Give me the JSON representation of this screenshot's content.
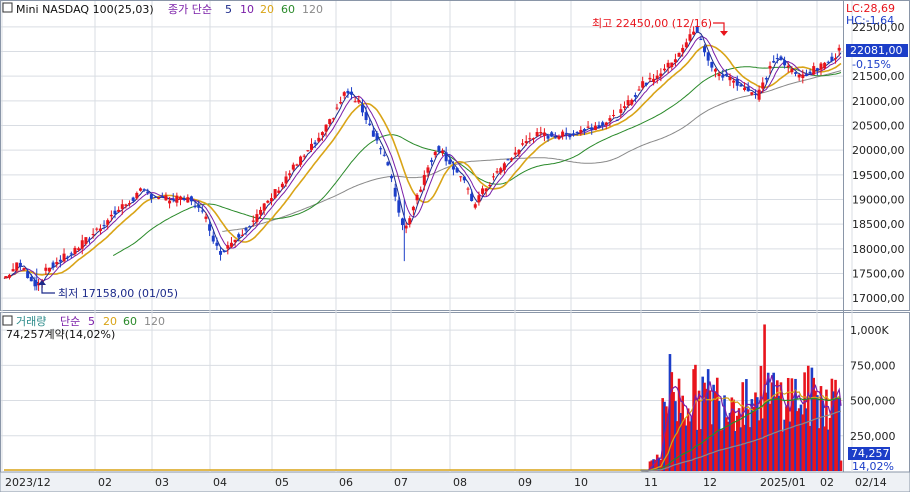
{
  "colors": {
    "up": "#e8141c",
    "down": "#1c3ec8",
    "ma5": "#1c2a8a",
    "ma10": "#7a1ea8",
    "ma20": "#d9a417",
    "ma60": "#2a8a2a",
    "ma120": "#8a8a8a",
    "price_box": "#1c3ec8",
    "grid": "#d9dde3",
    "axis_text": "#222222"
  },
  "price_panel": {
    "title": "Mini NASDAQ 100(25,03)",
    "ma_label": "종가 단순",
    "ma_periods": [
      "5",
      "10",
      "20",
      "60",
      "120"
    ],
    "lc": "LC:28,69",
    "hc": "HC:-1,64",
    "current_price": "22081,00",
    "change_pct": "-0,15%",
    "high_annotation": "최고 22450,00 (12/16)",
    "low_annotation": "최저 17158,00 (01/05)",
    "y_ticks": [
      "22500,00",
      "22000,00",
      "21500,00",
      "21000,00",
      "20500,00",
      "20000,00",
      "19500,00",
      "19000,00",
      "18500,00",
      "18000,00",
      "17500,00",
      "17000,00"
    ]
  },
  "volume_panel": {
    "title": "거래량",
    "ma_label": "단순",
    "ma_periods": [
      "5",
      "20",
      "60",
      "120"
    ],
    "subtitle": "74,257계약(14,02%)",
    "current_volume": "74,257",
    "current_pct": "14,02%",
    "y_ticks": [
      "1,000K",
      "750,000",
      "500,000",
      "250,000"
    ]
  },
  "x_axis": {
    "ticks": [
      "2023/12",
      "02",
      "03",
      "04",
      "05",
      "06",
      "07",
      "08",
      "09",
      "10",
      "11",
      "12",
      "2025/01",
      "02",
      "02/14"
    ]
  },
  "chart_data": [
    {
      "type": "line",
      "name": "price",
      "y_range": [
        16700,
        22800
      ],
      "key_points": [
        {
          "x": "2023/12",
          "y": 17500
        },
        {
          "x": "2024/01/05",
          "y": 17158
        },
        {
          "x": "2024/02",
          "y": 18000
        },
        {
          "x": "2024/03",
          "y": 19100
        },
        {
          "x": "2024/04",
          "y": 19000
        },
        {
          "x": "2024/04 late",
          "y": 17900
        },
        {
          "x": "2024/05",
          "y": 18200
        },
        {
          "x": "2024/06",
          "y": 19700
        },
        {
          "x": "2024/07",
          "y": 21100
        },
        {
          "x": "2024/08",
          "y": 18200
        },
        {
          "x": "2024/08 mid",
          "y": 20100
        },
        {
          "x": "2024/09",
          "y": 18900
        },
        {
          "x": "2024/10",
          "y": 20400
        },
        {
          "x": "2024/11",
          "y": 21000
        },
        {
          "x": "2024/12/16",
          "y": 22450
        },
        {
          "x": "2025/01",
          "y": 21200
        },
        {
          "x": "2025/02/14",
          "y": 22081
        }
      ]
    },
    {
      "type": "bar",
      "name": "volume",
      "y_range": [
        0,
        1100000
      ],
      "key_points": [
        {
          "x": "2023/12 – 2024/11",
          "y": 0
        },
        {
          "x": "2024/12",
          "y": 820000
        },
        {
          "x": "2025/01",
          "y": 1040000
        },
        {
          "x": "2025/02/14",
          "y": 74257
        }
      ]
    }
  ]
}
